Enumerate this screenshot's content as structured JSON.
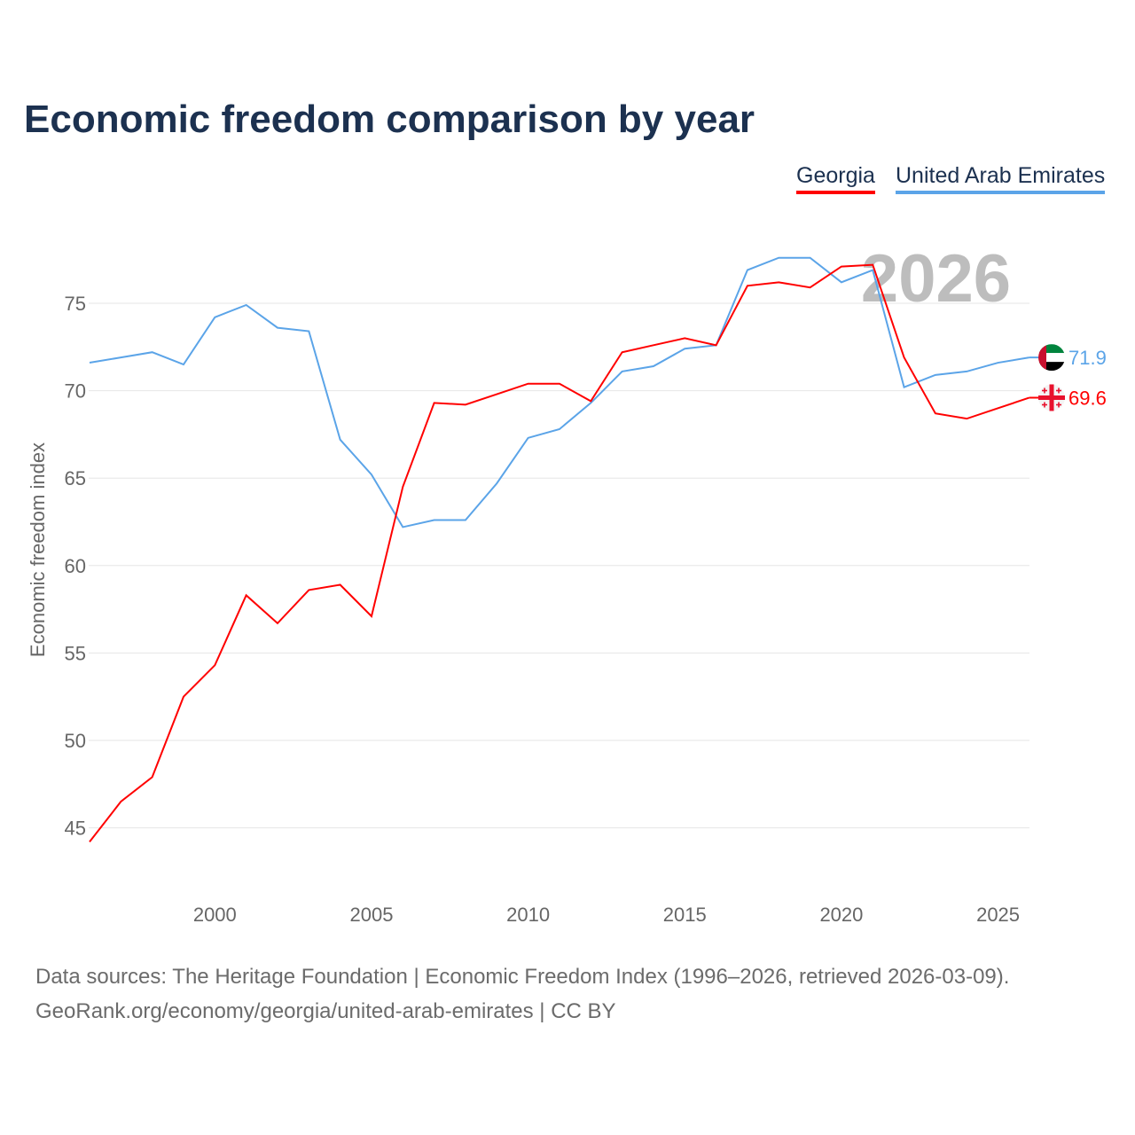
{
  "title": "Economic freedom comparison by year",
  "year_watermark": "2026",
  "footer": {
    "line1": "Data sources: The Heritage Foundation | Economic Freedom Index (1996–2026, retrieved 2026-03-09).",
    "line2": "GeoRank.org/economy/georgia/united-arab-emirates | CC BY"
  },
  "chart_data": {
    "type": "line",
    "title": "Economic freedom comparison by year",
    "xlabel": "",
    "ylabel": "Economic freedom index",
    "xlim": [
      1996,
      2026
    ],
    "ylim": [
      41.5,
      79
    ],
    "xticks": [
      2000,
      2005,
      2010,
      2015,
      2020,
      2025
    ],
    "yticks": [
      45,
      50,
      55,
      60,
      65,
      70,
      75
    ],
    "grid": true,
    "legend": "top-right",
    "x": [
      1996,
      1997,
      1998,
      1999,
      2000,
      2001,
      2002,
      2003,
      2004,
      2005,
      2006,
      2007,
      2008,
      2009,
      2010,
      2011,
      2012,
      2013,
      2014,
      2015,
      2016,
      2017,
      2018,
      2019,
      2020,
      2021,
      2022,
      2023,
      2024,
      2025,
      2026
    ],
    "series": [
      {
        "name": "Georgia",
        "color": "#ff0000",
        "end_label": "69.6",
        "values": [
          44.2,
          46.5,
          47.9,
          52.5,
          54.3,
          58.3,
          56.7,
          58.6,
          58.9,
          57.1,
          64.5,
          69.3,
          69.2,
          69.8,
          70.4,
          70.4,
          69.4,
          72.2,
          72.6,
          73.0,
          72.6,
          76.0,
          76.2,
          75.9,
          77.1,
          77.2,
          71.9,
          68.7,
          68.4,
          69.0,
          69.6
        ]
      },
      {
        "name": "United Arab Emirates",
        "color": "#5ba4e8",
        "end_label": "71.9",
        "values": [
          71.6,
          71.9,
          72.2,
          71.5,
          74.2,
          74.9,
          73.6,
          73.4,
          67.2,
          65.2,
          62.2,
          62.6,
          62.6,
          64.7,
          67.3,
          67.8,
          69.3,
          71.1,
          71.4,
          72.4,
          72.6,
          76.9,
          77.6,
          77.6,
          76.2,
          76.9,
          70.2,
          70.9,
          71.1,
          71.6,
          71.9
        ]
      }
    ]
  }
}
